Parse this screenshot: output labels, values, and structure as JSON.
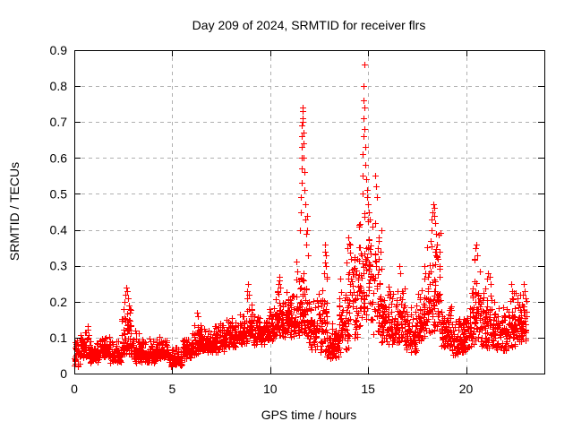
{
  "chart_data": {
    "type": "scatter",
    "title": "Day 209 of 2024, SRMTID for receiver flrs",
    "xlabel": "GPS time / hours",
    "ylabel": "SRMTID / TECUs",
    "xlim": [
      0,
      24
    ],
    "ylim": [
      0,
      0.9
    ],
    "xticks": [
      0,
      5,
      10,
      15,
      20
    ],
    "yticks": [
      0,
      0.1,
      0.2,
      0.3,
      0.4,
      0.5,
      0.6,
      0.7,
      0.8,
      0.9
    ],
    "grid": true,
    "legend": "none",
    "marker": {
      "shape": "plus",
      "color": "#ff0000",
      "size": 7
    },
    "colors": {
      "background": "#ffffff",
      "axis": "#000000",
      "grid": "#b0b0b0",
      "text": "#000000",
      "marker": "#ff0000"
    },
    "seed": 20924,
    "x_data_range": [
      0.0,
      23.1
    ],
    "series": [
      {
        "name": "SRMTID flrs",
        "envelope": [
          [
            0.0,
            0.3,
            0.02,
            0.12,
            30
          ],
          [
            0.3,
            0.8,
            0.04,
            0.14,
            55
          ],
          [
            0.8,
            1.3,
            0.03,
            0.1,
            55
          ],
          [
            1.3,
            1.8,
            0.04,
            0.12,
            55
          ],
          [
            1.8,
            2.4,
            0.03,
            0.1,
            65
          ],
          [
            2.4,
            2.9,
            0.05,
            0.2,
            55
          ],
          [
            2.9,
            3.5,
            0.03,
            0.12,
            65
          ],
          [
            3.5,
            4.2,
            0.03,
            0.1,
            75
          ],
          [
            4.2,
            4.8,
            0.04,
            0.11,
            65
          ],
          [
            4.8,
            5.5,
            0.02,
            0.08,
            75
          ],
          [
            5.5,
            6.0,
            0.04,
            0.11,
            55
          ],
          [
            6.0,
            6.5,
            0.05,
            0.16,
            55
          ],
          [
            6.5,
            7.1,
            0.06,
            0.13,
            65
          ],
          [
            7.1,
            7.7,
            0.06,
            0.15,
            65
          ],
          [
            7.7,
            8.3,
            0.07,
            0.16,
            65
          ],
          [
            8.3,
            8.8,
            0.08,
            0.17,
            55
          ],
          [
            8.8,
            9.1,
            0.09,
            0.22,
            35
          ],
          [
            9.1,
            9.7,
            0.08,
            0.17,
            65
          ],
          [
            9.7,
            10.2,
            0.09,
            0.19,
            55
          ],
          [
            10.2,
            10.7,
            0.1,
            0.24,
            55
          ],
          [
            10.7,
            11.3,
            0.1,
            0.23,
            65
          ],
          [
            11.3,
            11.9,
            0.1,
            0.33,
            70
          ],
          [
            11.9,
            12.4,
            0.06,
            0.24,
            55
          ],
          [
            12.4,
            12.9,
            0.05,
            0.28,
            55
          ],
          [
            12.9,
            13.5,
            0.04,
            0.16,
            65
          ],
          [
            13.5,
            14.0,
            0.06,
            0.28,
            55
          ],
          [
            14.0,
            14.5,
            0.09,
            0.42,
            55
          ],
          [
            14.5,
            15.2,
            0.12,
            0.5,
            75
          ],
          [
            15.2,
            15.7,
            0.1,
            0.45,
            55
          ],
          [
            15.7,
            16.3,
            0.08,
            0.28,
            65
          ],
          [
            16.3,
            16.9,
            0.08,
            0.26,
            65
          ],
          [
            16.9,
            17.5,
            0.06,
            0.22,
            65
          ],
          [
            17.5,
            18.0,
            0.08,
            0.28,
            55
          ],
          [
            18.0,
            18.7,
            0.1,
            0.42,
            75
          ],
          [
            18.7,
            19.3,
            0.07,
            0.2,
            65
          ],
          [
            19.3,
            19.9,
            0.05,
            0.17,
            65
          ],
          [
            19.9,
            20.3,
            0.06,
            0.2,
            45
          ],
          [
            20.3,
            20.8,
            0.08,
            0.33,
            55
          ],
          [
            20.8,
            21.4,
            0.07,
            0.27,
            65
          ],
          [
            21.4,
            22.1,
            0.06,
            0.21,
            75
          ],
          [
            22.1,
            22.7,
            0.07,
            0.24,
            65
          ],
          [
            22.7,
            23.1,
            0.08,
            0.24,
            45
          ]
        ],
        "spike_points": [
          [
            2.52,
            0.18
          ],
          [
            2.57,
            0.2
          ],
          [
            2.62,
            0.22
          ],
          [
            2.66,
            0.24
          ],
          [
            2.7,
            0.23
          ],
          [
            2.74,
            0.21
          ],
          [
            2.79,
            0.19
          ],
          [
            2.84,
            0.17
          ],
          [
            6.24,
            0.17
          ],
          [
            6.3,
            0.16
          ],
          [
            8.8,
            0.21
          ],
          [
            8.84,
            0.23
          ],
          [
            8.88,
            0.25
          ],
          [
            8.92,
            0.22
          ],
          [
            10.38,
            0.23
          ],
          [
            10.42,
            0.25
          ],
          [
            10.45,
            0.27
          ],
          [
            10.48,
            0.26
          ],
          [
            10.52,
            0.24
          ],
          [
            11.52,
            0.4
          ],
          [
            11.55,
            0.45
          ],
          [
            11.57,
            0.49
          ],
          [
            11.59,
            0.53
          ],
          [
            11.6,
            0.57
          ],
          [
            11.61,
            0.6
          ],
          [
            11.62,
            0.63
          ],
          [
            11.63,
            0.66
          ],
          [
            11.63,
            0.69
          ],
          [
            11.64,
            0.71
          ],
          [
            11.65,
            0.74
          ],
          [
            11.66,
            0.73
          ],
          [
            11.67,
            0.7
          ],
          [
            11.69,
            0.67
          ],
          [
            11.7,
            0.64
          ],
          [
            11.72,
            0.6
          ],
          [
            11.74,
            0.56
          ],
          [
            11.76,
            0.51
          ],
          [
            11.78,
            0.47
          ],
          [
            11.8,
            0.43
          ],
          [
            11.83,
            0.39
          ],
          [
            11.86,
            0.36
          ],
          [
            11.88,
            0.44
          ],
          [
            11.9,
            0.4
          ],
          [
            11.93,
            0.33
          ],
          [
            12.76,
            0.28
          ],
          [
            12.78,
            0.31
          ],
          [
            12.8,
            0.34
          ],
          [
            12.82,
            0.36
          ],
          [
            12.84,
            0.33
          ],
          [
            12.86,
            0.3
          ],
          [
            12.88,
            0.27
          ],
          [
            13.88,
            0.31
          ],
          [
            13.93,
            0.35
          ],
          [
            13.97,
            0.38
          ],
          [
            14.7,
            0.5
          ],
          [
            14.72,
            0.55
          ],
          [
            14.74,
            0.61
          ],
          [
            14.75,
            0.66
          ],
          [
            14.76,
            0.71
          ],
          [
            14.77,
            0.76
          ],
          [
            14.78,
            0.8
          ],
          [
            14.79,
            0.86
          ],
          [
            14.81,
            0.74
          ],
          [
            14.83,
            0.68
          ],
          [
            14.85,
            0.63
          ],
          [
            14.87,
            0.58
          ],
          [
            14.9,
            0.54
          ],
          [
            14.93,
            0.51
          ],
          [
            14.96,
            0.49
          ],
          [
            15.0,
            0.47
          ],
          [
            15.05,
            0.45
          ],
          [
            15.1,
            0.43
          ],
          [
            15.35,
            0.55
          ],
          [
            15.4,
            0.52
          ],
          [
            15.44,
            0.49
          ],
          [
            16.6,
            0.3
          ],
          [
            16.64,
            0.28
          ],
          [
            17.88,
            0.3
          ],
          [
            17.94,
            0.28
          ],
          [
            18.18,
            0.37
          ],
          [
            18.22,
            0.4
          ],
          [
            18.26,
            0.43
          ],
          [
            18.3,
            0.45
          ],
          [
            18.33,
            0.47
          ],
          [
            18.36,
            0.46
          ],
          [
            18.4,
            0.44
          ],
          [
            18.44,
            0.42
          ],
          [
            18.48,
            0.39
          ],
          [
            18.52,
            0.36
          ],
          [
            20.44,
            0.32
          ],
          [
            20.48,
            0.35
          ],
          [
            20.52,
            0.36
          ],
          [
            20.56,
            0.33
          ],
          [
            21.14,
            0.28
          ],
          [
            21.2,
            0.27
          ],
          [
            21.26,
            0.25
          ],
          [
            22.3,
            0.25
          ],
          [
            22.36,
            0.23
          ],
          [
            22.95,
            0.25
          ],
          [
            23.0,
            0.23
          ],
          [
            23.05,
            0.21
          ]
        ]
      }
    ]
  }
}
